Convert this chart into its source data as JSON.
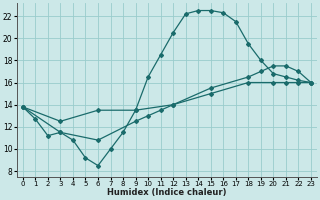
{
  "xlabel": "Humidex (Indice chaleur)",
  "bg_color": "#cce8e8",
  "grid_color": "#99cccc",
  "line_color": "#1a6b6b",
  "line1_x": [
    0,
    1,
    2,
    3,
    4,
    5,
    6,
    7,
    8,
    9,
    10,
    11,
    12,
    13,
    14,
    15,
    16,
    17,
    18,
    19,
    20,
    21,
    22,
    23
  ],
  "line1_y": [
    13.8,
    12.7,
    11.2,
    11.5,
    10.8,
    9.2,
    8.5,
    10.0,
    11.5,
    13.5,
    16.5,
    18.5,
    20.5,
    22.2,
    22.5,
    22.5,
    22.3,
    21.5,
    19.5,
    18.0,
    16.8,
    16.5,
    16.2,
    16.0
  ],
  "line2_x": [
    0,
    3,
    6,
    9,
    12,
    15,
    18,
    19,
    20,
    21,
    22,
    23
  ],
  "line2_y": [
    13.8,
    12.5,
    13.5,
    13.5,
    14.0,
    15.5,
    16.5,
    17.0,
    17.5,
    17.5,
    17.0,
    16.0
  ],
  "line3_x": [
    0,
    3,
    6,
    9,
    10,
    11,
    12,
    15,
    18,
    20,
    21,
    22,
    23
  ],
  "line3_y": [
    13.8,
    11.5,
    10.8,
    12.5,
    13.0,
    13.5,
    14.0,
    15.0,
    16.0,
    16.0,
    16.0,
    16.0,
    16.0
  ],
  "xlim": [
    -0.5,
    23.5
  ],
  "ylim": [
    7.5,
    23.2
  ],
  "yticks": [
    8,
    10,
    12,
    14,
    16,
    18,
    20,
    22
  ],
  "xticks": [
    0,
    1,
    2,
    3,
    4,
    5,
    6,
    7,
    8,
    9,
    10,
    11,
    12,
    13,
    14,
    15,
    16,
    17,
    18,
    19,
    20,
    21,
    22,
    23
  ]
}
